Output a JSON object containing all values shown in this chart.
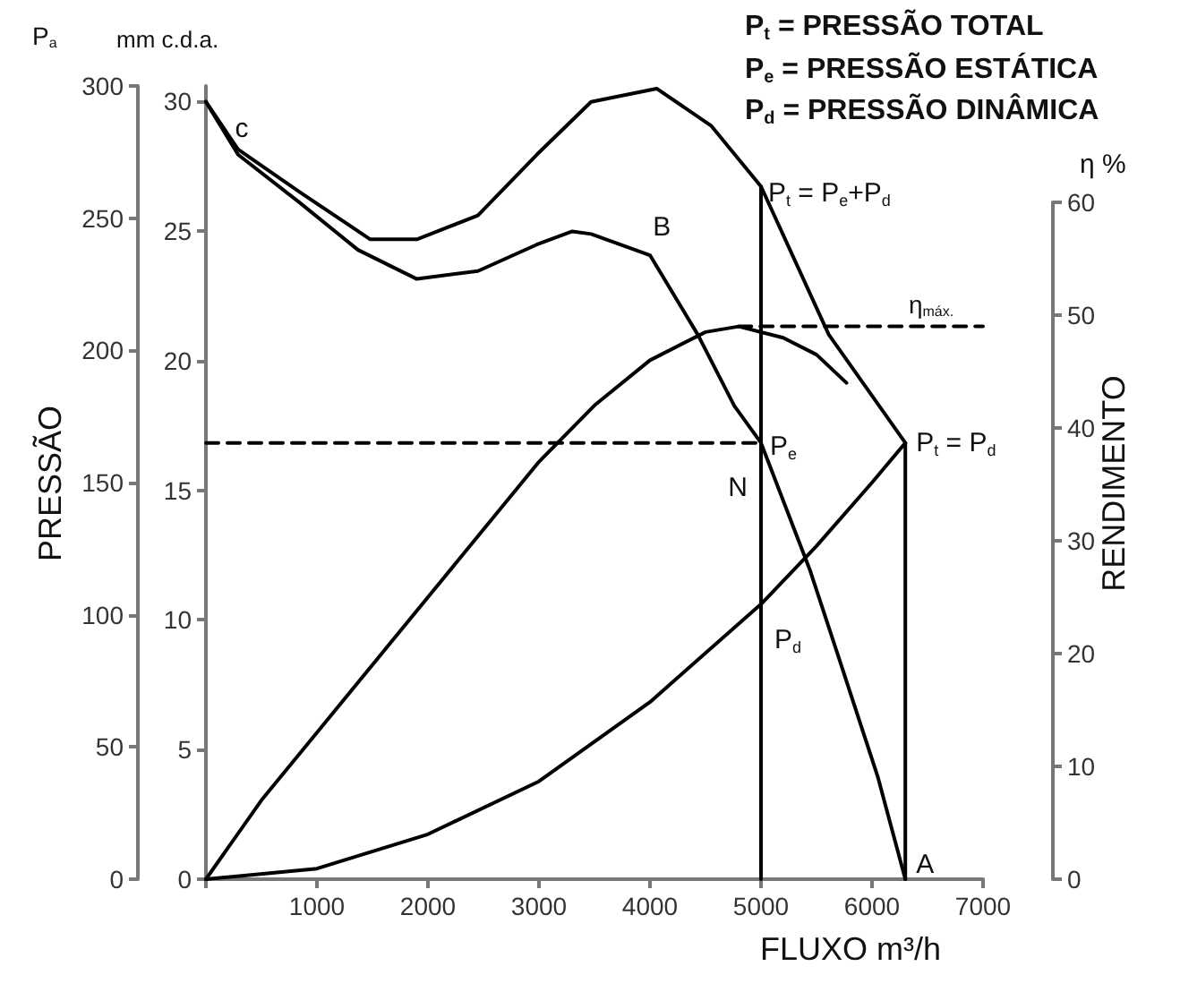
{
  "chart_data": {
    "type": "line",
    "xlabel": "FLUXO m³/h",
    "ylabel": "PRESSÃO",
    "y2label": "RENDIMENTO",
    "y3label": "mm c.d.a.",
    "annotations": [
      "P$_{a}$",
      "η %",
      "P$_{t}$ = PRESSÃO TOTAL",
      "P$_{e}$ = PRESSÃO ESTÁTICA",
      "P$_{d}$ = PRESSÃO DINÂMICA",
      "η$_{máx.}$",
      {
        "text": "c",
        "x": 0,
        "y": 294
      },
      {
        "text": "B",
        "x": 3300,
        "y": 245
      },
      {
        "text": "P$_{t}$ = P$_{e}$+P$_{d}$",
        "x": 5000,
        "y": 262
      },
      {
        "text": "P$_{e}$",
        "x": 5000,
        "y": 165
      },
      {
        "text": "N",
        "x": 5000,
        "y": 165
      },
      {
        "text": "P$_{d}$",
        "x": 5000,
        "y": 104
      },
      {
        "text": "P$_{t}$ = P$_{d}$",
        "x": 6300,
        "y": 165
      },
      {
        "text": "A",
        "x": 6300,
        "y": 0
      }
    ],
    "series": [
      {
        "color": "#000000",
        "x": [
          0,
          290,
          840,
          1480,
          1900,
          2450,
          2980,
          3470,
          4060,
          4550,
          5000,
          5610,
          6300
        ],
        "values": [
          294,
          276,
          260,
          242,
          242,
          251,
          274,
          294,
          299,
          285,
          262,
          206,
          165
        ]
      },
      {
        "color": "#000000",
        "x": [
          0,
          290,
          840,
          1370,
          1900,
          2450,
          2980,
          3300,
          3470,
          4000,
          4430,
          4760,
          5000,
          5440,
          5730,
          6050,
          6300
        ],
        "values": [
          294,
          274,
          256,
          238,
          227,
          230,
          240,
          245,
          244,
          236,
          206,
          179,
          165,
          117,
          80,
          39,
          0
        ]
      },
      {
        "color": "#000000",
        "x": [
          0,
          1000,
          2000,
          3000,
          4000,
          5000,
          5500,
          6000,
          6300
        ],
        "values": [
          0,
          4,
          17,
          37,
          67,
          104,
          126,
          150,
          165
        ]
      },
      {
        "color": "#000000",
        "axis": "y2",
        "x": [
          0,
          500,
          1000,
          2000,
          3000,
          3500,
          4000,
          4500,
          4800,
          5200,
          5500,
          5770
        ],
        "values": [
          0,
          7,
          13,
          25,
          37,
          42,
          46,
          48.5,
          49,
          48,
          46.5,
          44
        ]
      },
      {
        "color": "#000000",
        "x": [
          5000,
          5000
        ],
        "values": [
          0,
          262
        ]
      },
      {
        "color": "#000000",
        "x": [
          6300,
          6300
        ],
        "values": [
          0,
          165
        ]
      },
      {
        "color": "#000000",
        "line_style": "dashed",
        "x": [
          0,
          5000
        ],
        "values": [
          165,
          165
        ]
      },
      {
        "color": "#000000",
        "line_style": "dashed",
        "axis": "y2",
        "x": [
          4800,
          7000
        ],
        "values": [
          49,
          49
        ]
      }
    ],
    "xlim": [
      0,
      7000
    ],
    "xticks": [
      {
        "value": 0,
        "label": null
      },
      1000,
      2000,
      3000,
      4000,
      5000,
      6000,
      7000
    ],
    "ylim": [
      0,
      300
    ],
    "yticks": [
      0,
      50,
      100,
      150,
      200,
      250,
      300
    ],
    "y3lim": [
      0,
      30.6
    ],
    "y3ticks": [
      0,
      5,
      10,
      15,
      20,
      25,
      30
    ],
    "y2lim": [
      0,
      60
    ],
    "y2ticks": [
      0,
      10,
      20,
      30,
      40,
      50,
      60
    ],
    "grid": false,
    "marker": "none",
    "line_style": "solid"
  }
}
